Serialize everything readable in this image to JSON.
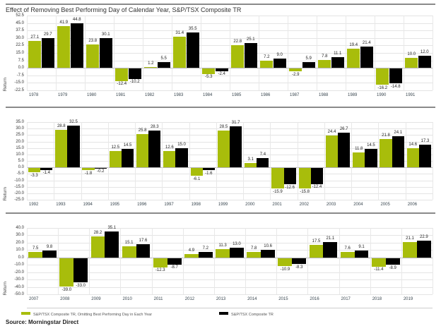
{
  "page": {
    "title": "Effect of Removing Best Performing Day of Calendar Year, S&P/TSX Composite TR",
    "source": "Source: Morningstar Direct",
    "ylabel": "Return"
  },
  "legend": {
    "items": [
      {
        "label": "S&P/TSX Composite TR, Omitting Best Performing Day in Each Year",
        "color": "#a8bd0b"
      },
      {
        "label": "S&P/TSX Composite TR",
        "color": "#000000"
      }
    ]
  },
  "colors": {
    "omit_green": "#a8bd0b",
    "composite_black": "#000000",
    "gridline": "#e4e4e4",
    "zero_line": "#b3b3b3",
    "divider": "#8a8a8a"
  },
  "chart_data": [
    {
      "type": "bar",
      "categories": [
        "1978",
        "1979",
        "1980",
        "1981",
        "1982",
        "1983",
        "1984",
        "1985",
        "1986",
        "1987",
        "1988",
        "1989",
        "1990",
        "1991"
      ],
      "series": [
        {
          "name": "S&P/TSX Composite TR, Omitting Best Performing Day in Each Year",
          "color": "#a8bd0b",
          "values": [
            27.1,
            41.9,
            23.8,
            -12.4,
            1.2,
            31.4,
            -5.3,
            22.8,
            7.2,
            -2.9,
            7.8,
            19.4,
            -16.2,
            10.0
          ]
        },
        {
          "name": "S&P/TSX Composite TR",
          "color": "#000000",
          "values": [
            29.7,
            44.8,
            30.1,
            -10.2,
            5.5,
            35.5,
            -2.4,
            25.1,
            9.0,
            5.9,
            11.1,
            21.4,
            -14.8,
            12.0
          ]
        }
      ],
      "ylabel": "Return",
      "ylim": [
        -22.5,
        52.5
      ],
      "ytick_step": 7.5,
      "grid": true,
      "legend_position": "none"
    },
    {
      "type": "bar",
      "categories": [
        "1992",
        "1993",
        "1994",
        "1995",
        "1996",
        "1997",
        "1998",
        "1999",
        "2000",
        "2001",
        "2002",
        "2003",
        "2004",
        "2005",
        "2006"
      ],
      "series": [
        {
          "name": "S&P/TSX Composite TR, Omitting Best Performing Day in Each Year",
          "color": "#a8bd0b",
          "values": [
            -3.3,
            28.8,
            -1.8,
            12.5,
            25.8,
            12.6,
            -6.1,
            28.5,
            3.1,
            -15.9,
            -15.8,
            24.4,
            11.8,
            21.8,
            14.6
          ]
        },
        {
          "name": "S&P/TSX Composite TR",
          "color": "#000000",
          "values": [
            -1.4,
            32.5,
            -0.2,
            14.5,
            28.3,
            15.0,
            -1.6,
            31.7,
            7.4,
            -12.6,
            -12.4,
            26.7,
            14.5,
            24.1,
            17.3
          ]
        }
      ],
      "ylabel": "Return",
      "ylim": [
        -25.0,
        35.0
      ],
      "ytick_step": 5.0,
      "grid": true,
      "legend_position": "none"
    },
    {
      "type": "bar",
      "categories": [
        "2007",
        "2008",
        "2009",
        "2010",
        "2011",
        "2012",
        "2013",
        "2014",
        "2015",
        "2016",
        "2017",
        "2018",
        "2019"
      ],
      "series": [
        {
          "name": "S&P/TSX Composite TR, Omitting Best Performing Day in Each Year",
          "color": "#a8bd0b",
          "values": [
            7.5,
            -39.0,
            28.2,
            15.1,
            -12.3,
            4.9,
            11.3,
            7.8,
            -10.9,
            17.5,
            7.6,
            -11.4,
            21.1
          ]
        },
        {
          "name": "S&P/TSX Composite TR",
          "color": "#000000",
          "values": [
            9.8,
            -33.0,
            35.1,
            17.6,
            -8.7,
            7.2,
            13.0,
            10.6,
            -8.3,
            21.1,
            9.1,
            -8.9,
            22.9
          ]
        }
      ],
      "ylabel": "Return",
      "ylim": [
        -50.0,
        40.0
      ],
      "ytick_step": 10.0,
      "grid": true,
      "legend_position": "bottom"
    }
  ]
}
